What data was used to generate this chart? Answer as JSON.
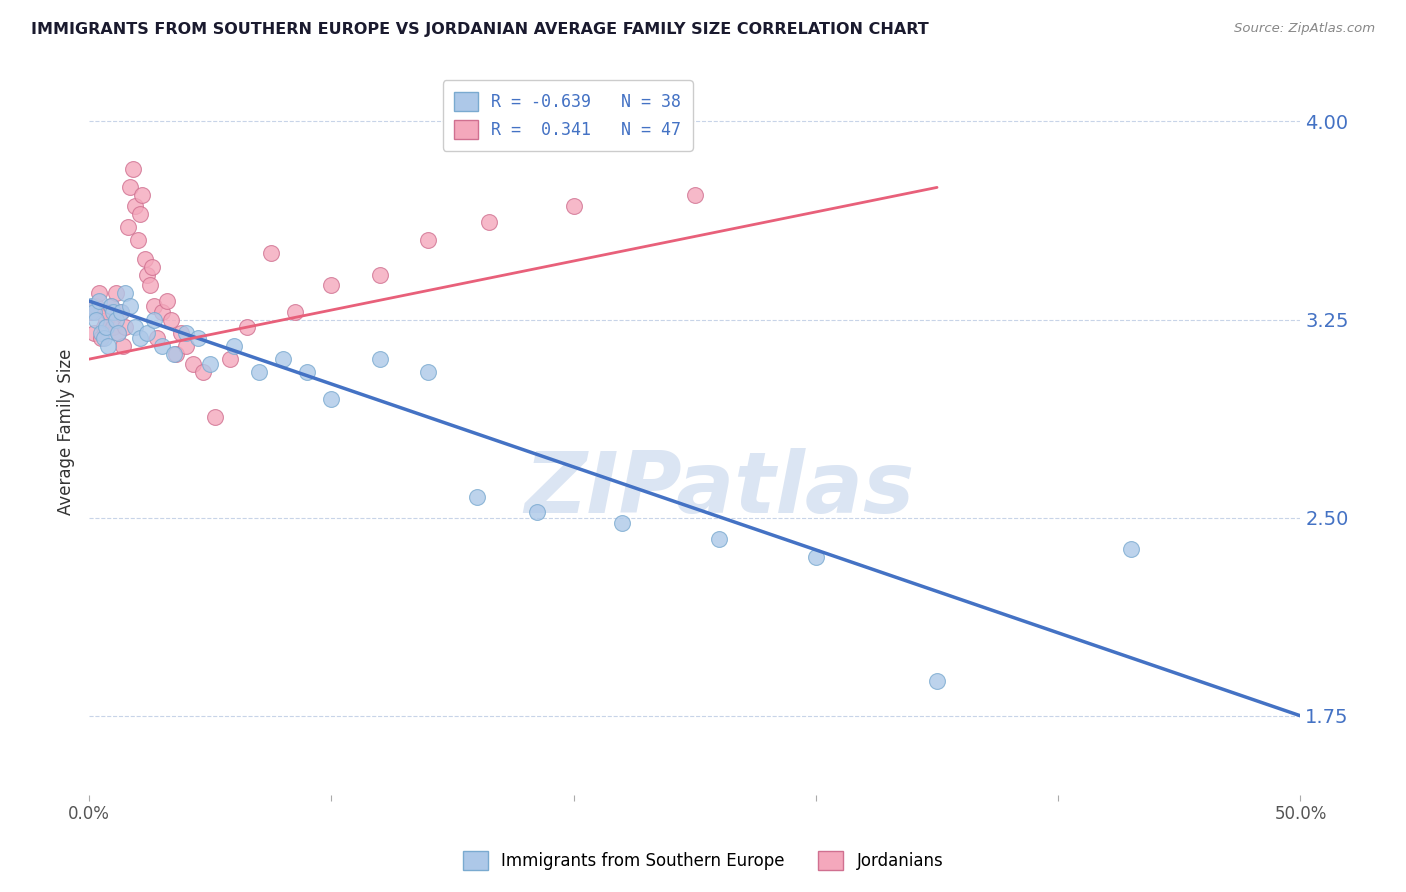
{
  "title": "IMMIGRANTS FROM SOUTHERN EUROPE VS JORDANIAN AVERAGE FAMILY SIZE CORRELATION CHART",
  "source": "Source: ZipAtlas.com",
  "ylabel": "Average Family Size",
  "yticks": [
    1.75,
    2.5,
    3.25,
    4.0
  ],
  "ytick_labels": [
    "1.75",
    "2.50",
    "3.25",
    "4.00"
  ],
  "xlim": [
    0.0,
    0.5
  ],
  "ylim": [
    1.45,
    4.2
  ],
  "legend_label1": "Immigrants from Southern Europe",
  "legend_label2": "Jordanians",
  "legend_r1": "R = -0.639",
  "legend_n1": "N = 38",
  "legend_r2": "R =  0.341",
  "legend_n2": "N = 47",
  "blue_scatter_x": [
    0.001,
    0.002,
    0.003,
    0.004,
    0.005,
    0.006,
    0.007,
    0.008,
    0.009,
    0.01,
    0.011,
    0.012,
    0.013,
    0.015,
    0.017,
    0.019,
    0.021,
    0.024,
    0.027,
    0.03,
    0.035,
    0.04,
    0.045,
    0.05,
    0.06,
    0.07,
    0.08,
    0.09,
    0.1,
    0.12,
    0.14,
    0.16,
    0.185,
    0.22,
    0.26,
    0.3,
    0.35,
    0.43
  ],
  "blue_scatter_y": [
    3.3,
    3.28,
    3.25,
    3.32,
    3.2,
    3.18,
    3.22,
    3.15,
    3.3,
    3.28,
    3.25,
    3.2,
    3.28,
    3.35,
    3.3,
    3.22,
    3.18,
    3.2,
    3.25,
    3.15,
    3.12,
    3.2,
    3.18,
    3.08,
    3.15,
    3.05,
    3.1,
    3.05,
    2.95,
    3.1,
    3.05,
    2.58,
    2.52,
    2.48,
    2.42,
    2.35,
    1.88,
    2.38
  ],
  "pink_scatter_x": [
    0.001,
    0.002,
    0.003,
    0.004,
    0.005,
    0.006,
    0.007,
    0.008,
    0.009,
    0.01,
    0.011,
    0.012,
    0.013,
    0.014,
    0.015,
    0.016,
    0.017,
    0.018,
    0.019,
    0.02,
    0.021,
    0.022,
    0.023,
    0.024,
    0.025,
    0.026,
    0.027,
    0.028,
    0.03,
    0.032,
    0.034,
    0.036,
    0.038,
    0.04,
    0.043,
    0.047,
    0.052,
    0.058,
    0.065,
    0.075,
    0.085,
    0.1,
    0.12,
    0.14,
    0.165,
    0.2,
    0.25
  ],
  "pink_scatter_y": [
    3.28,
    3.2,
    3.3,
    3.35,
    3.18,
    3.22,
    3.25,
    3.28,
    3.3,
    3.22,
    3.35,
    3.2,
    3.28,
    3.15,
    3.22,
    3.6,
    3.75,
    3.82,
    3.68,
    3.55,
    3.65,
    3.72,
    3.48,
    3.42,
    3.38,
    3.45,
    3.3,
    3.18,
    3.28,
    3.32,
    3.25,
    3.12,
    3.2,
    3.15,
    3.08,
    3.05,
    2.88,
    3.1,
    3.22,
    3.5,
    3.28,
    3.38,
    3.42,
    3.55,
    3.62,
    3.68,
    3.72
  ],
  "blue_line_x": [
    0.0,
    0.5
  ],
  "blue_line_y": [
    3.32,
    1.75
  ],
  "pink_line_x": [
    0.0,
    0.35
  ],
  "pink_line_y": [
    3.1,
    3.75
  ],
  "blue_line_color": "#4472c4",
  "pink_line_color": "#e8607a",
  "blue_scatter_color": "#adc8e8",
  "blue_scatter_edge": "#7aaad0",
  "pink_scatter_color": "#f4a8bc",
  "pink_scatter_edge": "#d07090",
  "watermark_text": "ZIPatlas",
  "watermark_color": "#ccdaee",
  "background_color": "#ffffff",
  "grid_color": "#c8d4e8",
  "title_color": "#1a1a2e",
  "source_color": "#888888",
  "ylabel_color": "#333333",
  "ytick_color": "#4472c4"
}
